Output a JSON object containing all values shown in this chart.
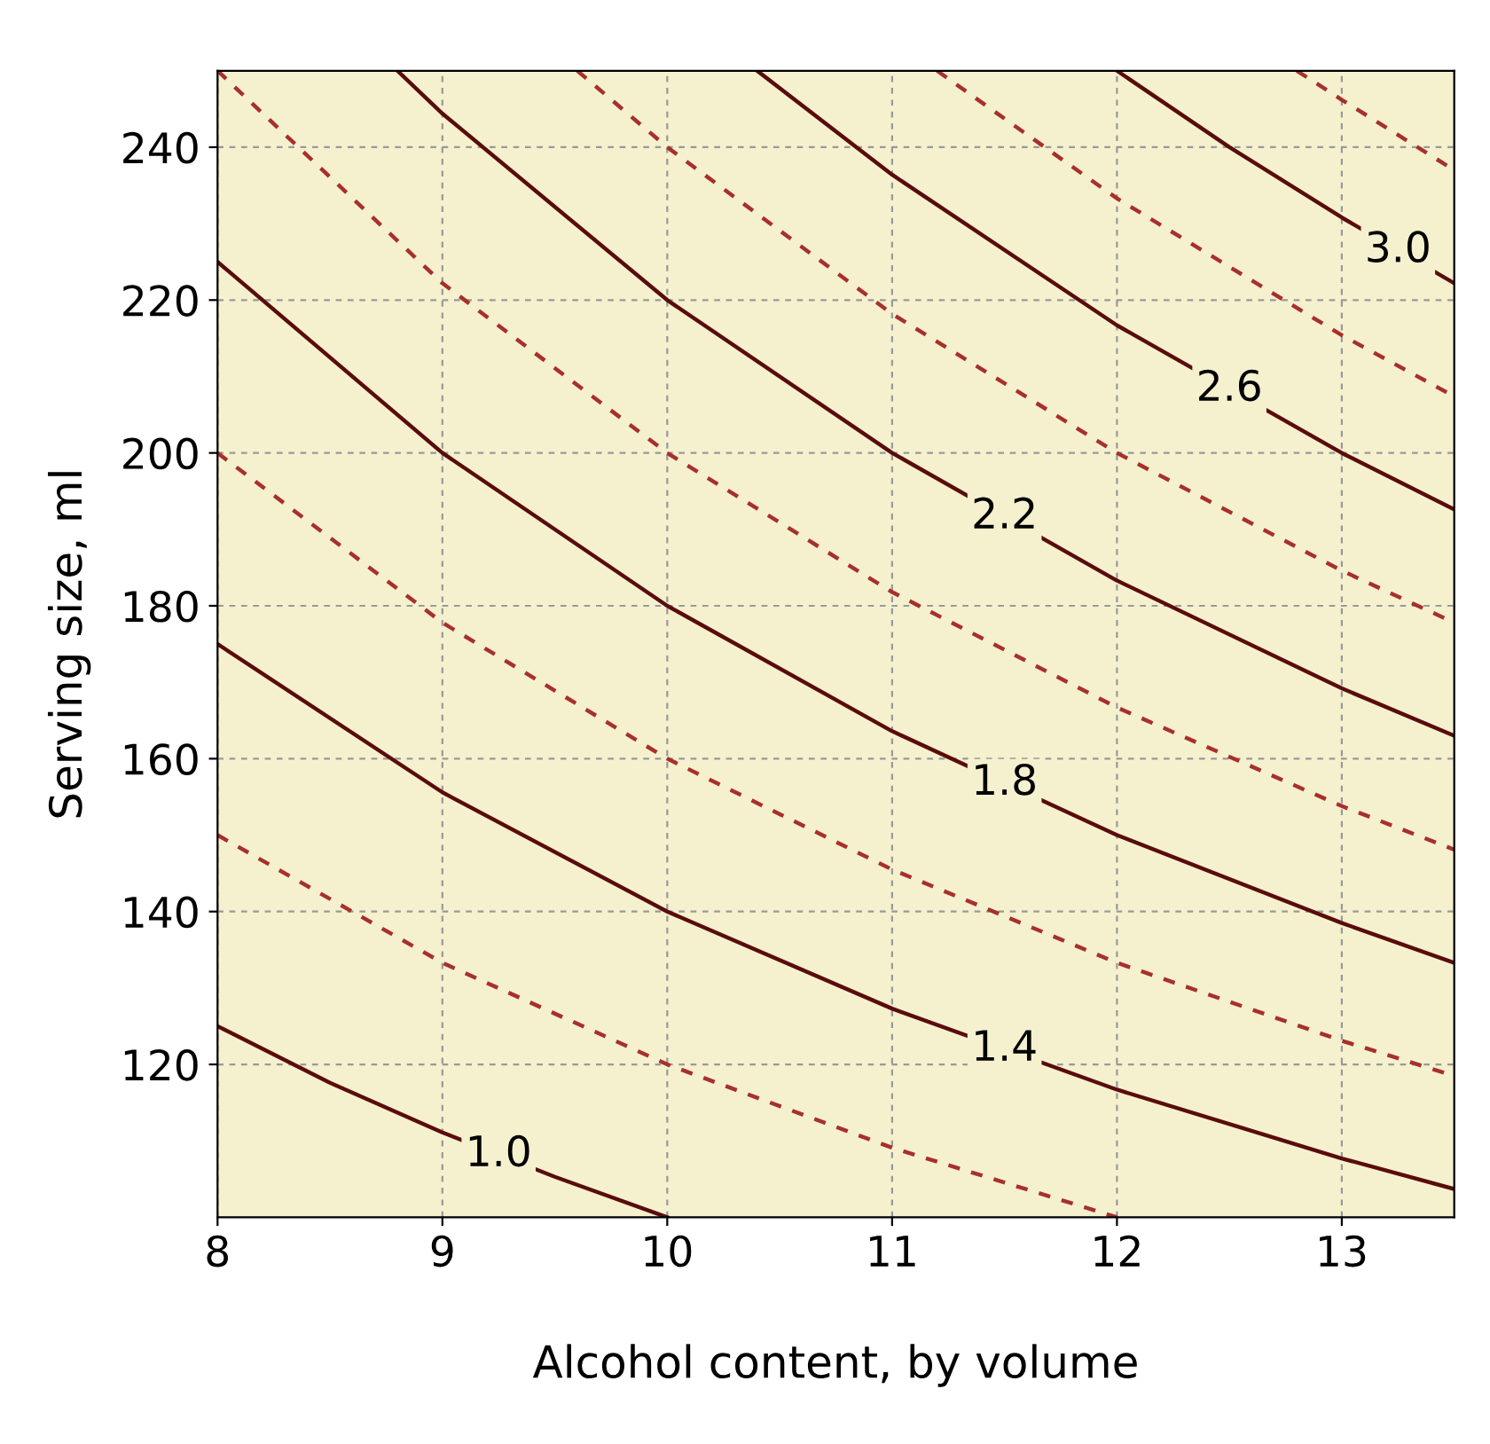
{
  "chart_data": {
    "type": "line",
    "xlabel": "Alcohol content, by volume",
    "ylabel": "Serving size, ml",
    "xlim": [
      8,
      13.5
    ],
    "ylim": [
      100,
      250
    ],
    "xticks": [
      8,
      9,
      10,
      11,
      12,
      13
    ],
    "yticks": [
      120,
      140,
      160,
      180,
      200,
      220,
      240
    ],
    "grid": true,
    "marker": "none",
    "series": [
      {
        "name": "1.0",
        "color": "#5a0c0c",
        "line_style": "solid",
        "x": [
          8,
          8.5,
          9,
          9.5,
          10
        ],
        "values": [
          125,
          117.6,
          111.1,
          105.3,
          100
        ]
      },
      {
        "color": "#a8302c",
        "line_style": "dashed",
        "x": [
          8,
          9,
          10,
          11,
          12
        ],
        "values": [
          150,
          133.3,
          120,
          109.1,
          100
        ]
      },
      {
        "name": "1.4",
        "color": "#5a0c0c",
        "line_style": "solid",
        "x": [
          8,
          9,
          10,
          11,
          12,
          13,
          13.5
        ],
        "values": [
          175,
          155.6,
          140,
          127.3,
          116.7,
          107.7,
          103.7
        ]
      },
      {
        "color": "#a8302c",
        "line_style": "dashed",
        "x": [
          8,
          9,
          10,
          11,
          12,
          13,
          13.5
        ],
        "values": [
          200,
          177.8,
          160,
          145.5,
          133.3,
          123.1,
          118.5
        ]
      },
      {
        "name": "1.8",
        "color": "#5a0c0c",
        "line_style": "solid",
        "x": [
          8,
          9,
          10,
          11,
          12,
          13,
          13.5
        ],
        "values": [
          225,
          200,
          180,
          163.6,
          150,
          138.5,
          133.3
        ]
      },
      {
        "color": "#a8302c",
        "line_style": "dashed",
        "x": [
          8,
          9,
          10,
          11,
          12,
          13,
          13.5
        ],
        "values": [
          250,
          222.2,
          200,
          181.8,
          166.7,
          153.8,
          148.1
        ]
      },
      {
        "name": "2.2",
        "color": "#5a0c0c",
        "line_style": "solid",
        "x": [
          8.8,
          9,
          10,
          11,
          12,
          13,
          13.5
        ],
        "values": [
          250,
          244.4,
          220,
          200,
          183.3,
          169.2,
          163
        ]
      },
      {
        "color": "#a8302c",
        "line_style": "dashed",
        "x": [
          9.6,
          10,
          11,
          12,
          13,
          13.5
        ],
        "values": [
          250,
          240,
          218.2,
          200,
          184.6,
          177.8
        ]
      },
      {
        "name": "2.6",
        "color": "#5a0c0c",
        "line_style": "solid",
        "x": [
          10.4,
          11,
          12,
          13,
          13.5
        ],
        "values": [
          250,
          236.4,
          216.7,
          200,
          192.6
        ]
      },
      {
        "color": "#a8302c",
        "line_style": "dashed",
        "x": [
          11.2,
          12,
          13,
          13.5
        ],
        "values": [
          250,
          233.3,
          215.4,
          207.4
        ]
      },
      {
        "name": "3.0",
        "color": "#5a0c0c",
        "line_style": "solid",
        "x": [
          12,
          12.5,
          13,
          13.5
        ],
        "values": [
          250,
          240,
          230.8,
          222.2
        ]
      },
      {
        "color": "#a8302c",
        "line_style": "dashed",
        "x": [
          12.8,
          13,
          13.5
        ],
        "values": [
          250,
          246.2,
          237
        ]
      }
    ]
  }
}
